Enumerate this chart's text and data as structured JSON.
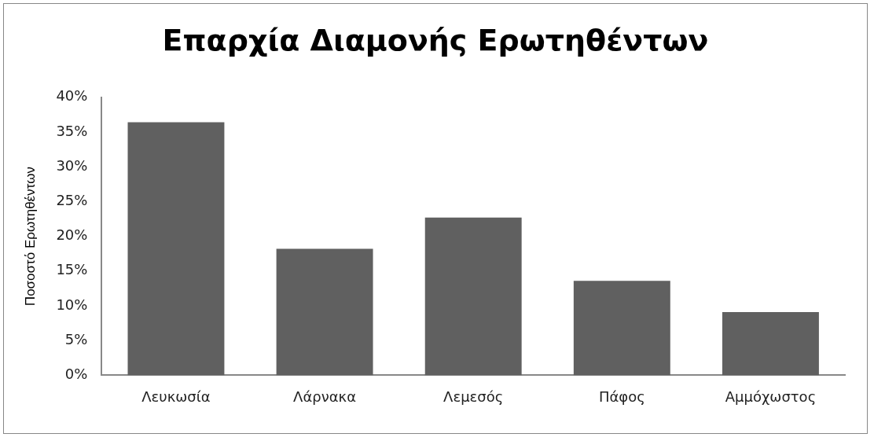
{
  "chart_data": {
    "type": "bar",
    "title": "Επαρχία Διαμονής Ερωτηθέντων",
    "ylabel": "Ποσοστό Ερωτηθέντων",
    "categories": [
      "Λευκωσία",
      "Λάρνακα",
      "Λεμεσός",
      "Πάφος",
      "Αμμόχωστος"
    ],
    "values": [
      36.4,
      18.2,
      22.7,
      13.6,
      9.1
    ],
    "color": "#606060",
    "ylim": [
      0,
      40
    ],
    "yticks": [
      {
        "value": 0,
        "label": "0%"
      },
      {
        "value": 5,
        "label": "5%"
      },
      {
        "value": 10,
        "label": "10%"
      },
      {
        "value": 15,
        "label": "15%"
      },
      {
        "value": 20,
        "label": "20%"
      },
      {
        "value": 25,
        "label": "25%"
      },
      {
        "value": 30,
        "label": "30%"
      },
      {
        "value": 35,
        "label": "35%"
      },
      {
        "value": 40,
        "label": "40%"
      }
    ],
    "grid": false,
    "legend": false
  }
}
